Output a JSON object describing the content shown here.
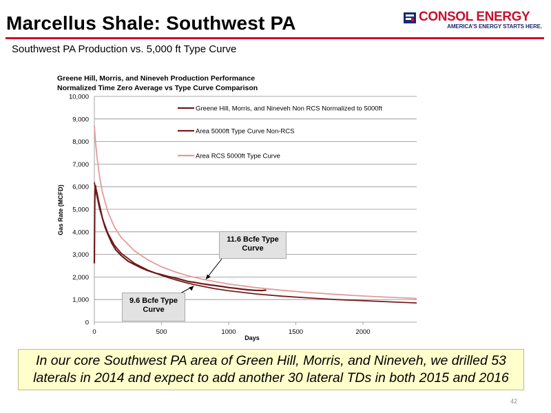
{
  "header": {
    "title": "Marcellus Shale: Southwest PA",
    "subtitle": "Southwest PA Production vs. 5,000 ft Type Curve",
    "logo_name": "CONSOL ENERGY",
    "logo_tagline": "AMERICA'S ENERGY STARTS HERE.",
    "accent_color": "#c8102e"
  },
  "chart_data": {
    "type": "line",
    "title": "Greene Hill, Morris, and Nineveh Production Performance",
    "subtitle": "Normalized Time Zero Average vs Type Curve Comparison",
    "xlabel": "Days",
    "ylabel": "Gas Rate (MCFD)",
    "xlim": [
      0,
      2400
    ],
    "ylim": [
      0,
      10000
    ],
    "x_ticks": [
      0,
      500,
      1000,
      1500,
      2000
    ],
    "x_tick_labels": [
      "0",
      "500",
      "1000",
      "1500",
      "2000"
    ],
    "y_ticks": [
      0,
      1000,
      2000,
      3000,
      4000,
      5000,
      6000,
      7000,
      8000,
      9000,
      10000
    ],
    "y_tick_labels": [
      "0",
      "1,000",
      "2,000",
      "3,000",
      "4,000",
      "5,000",
      "6,000",
      "7,000",
      "8,000",
      "9,000",
      "10,000"
    ],
    "grid": "horizontal",
    "legend_position": "top-right",
    "series": [
      {
        "name": "Greene Hill, Morris, and Nineveh Non RCS Normalized to 5000ft",
        "color": "#6b1a1a",
        "x": [
          0,
          3,
          5,
          8,
          12,
          20,
          30,
          45,
          60,
          80,
          100,
          130,
          160,
          200,
          250,
          300,
          350,
          400,
          450,
          500,
          550,
          600,
          650,
          700,
          750,
          800,
          850,
          900,
          950,
          1000,
          1050,
          1100,
          1150,
          1200,
          1250,
          1280
        ],
        "y": [
          2600,
          5400,
          5800,
          6050,
          5900,
          5700,
          5400,
          5000,
          4600,
          4200,
          3900,
          3500,
          3200,
          2950,
          2700,
          2550,
          2400,
          2280,
          2180,
          2100,
          2020,
          1960,
          1880,
          1800,
          1760,
          1700,
          1660,
          1620,
          1580,
          1530,
          1500,
          1460,
          1430,
          1410,
          1400,
          1420
        ]
      },
      {
        "name": "Area 5000ft Type Curve Non-RCS",
        "color": "#7a1a1a",
        "x": [
          0,
          10,
          20,
          40,
          60,
          100,
          150,
          200,
          300,
          400,
          500,
          600,
          700,
          800,
          900,
          1000,
          1200,
          1400,
          1600,
          1800,
          2000,
          2200,
          2400
        ],
        "y": [
          6200,
          5850,
          5550,
          5000,
          4600,
          3950,
          3400,
          3050,
          2600,
          2300,
          2070,
          1880,
          1720,
          1590,
          1480,
          1390,
          1250,
          1150,
          1070,
          1000,
          950,
          900,
          850
        ]
      },
      {
        "name": "Area RCS 5000ft Type Curve",
        "color": "#e39a9a",
        "x": [
          0,
          10,
          20,
          40,
          60,
          100,
          150,
          200,
          300,
          400,
          500,
          600,
          700,
          800,
          900,
          1000,
          1200,
          1400,
          1600,
          1800,
          2000,
          2200,
          2400
        ],
        "y": [
          8700,
          7900,
          7300,
          6400,
          5750,
          4900,
          4200,
          3750,
          3150,
          2750,
          2450,
          2230,
          2050,
          1910,
          1790,
          1690,
          1530,
          1410,
          1310,
          1230,
          1160,
          1100,
          1050
        ]
      }
    ],
    "annotations": [
      {
        "text": "11.6 Bcfe Type Curve",
        "arrow_to": {
          "x": 830,
          "y": 1900
        }
      },
      {
        "text": "9.6 Bcfe Type Curve",
        "arrow_to": {
          "x": 740,
          "y": 1600
        }
      }
    ]
  },
  "caption": "In our core Southwest PA area of Green Hill, Morris, and Nineveh, we drilled 53 laterals in 2014 and expect to add another 30 lateral TDs in both 2015 and 2016",
  "page_number": "42"
}
